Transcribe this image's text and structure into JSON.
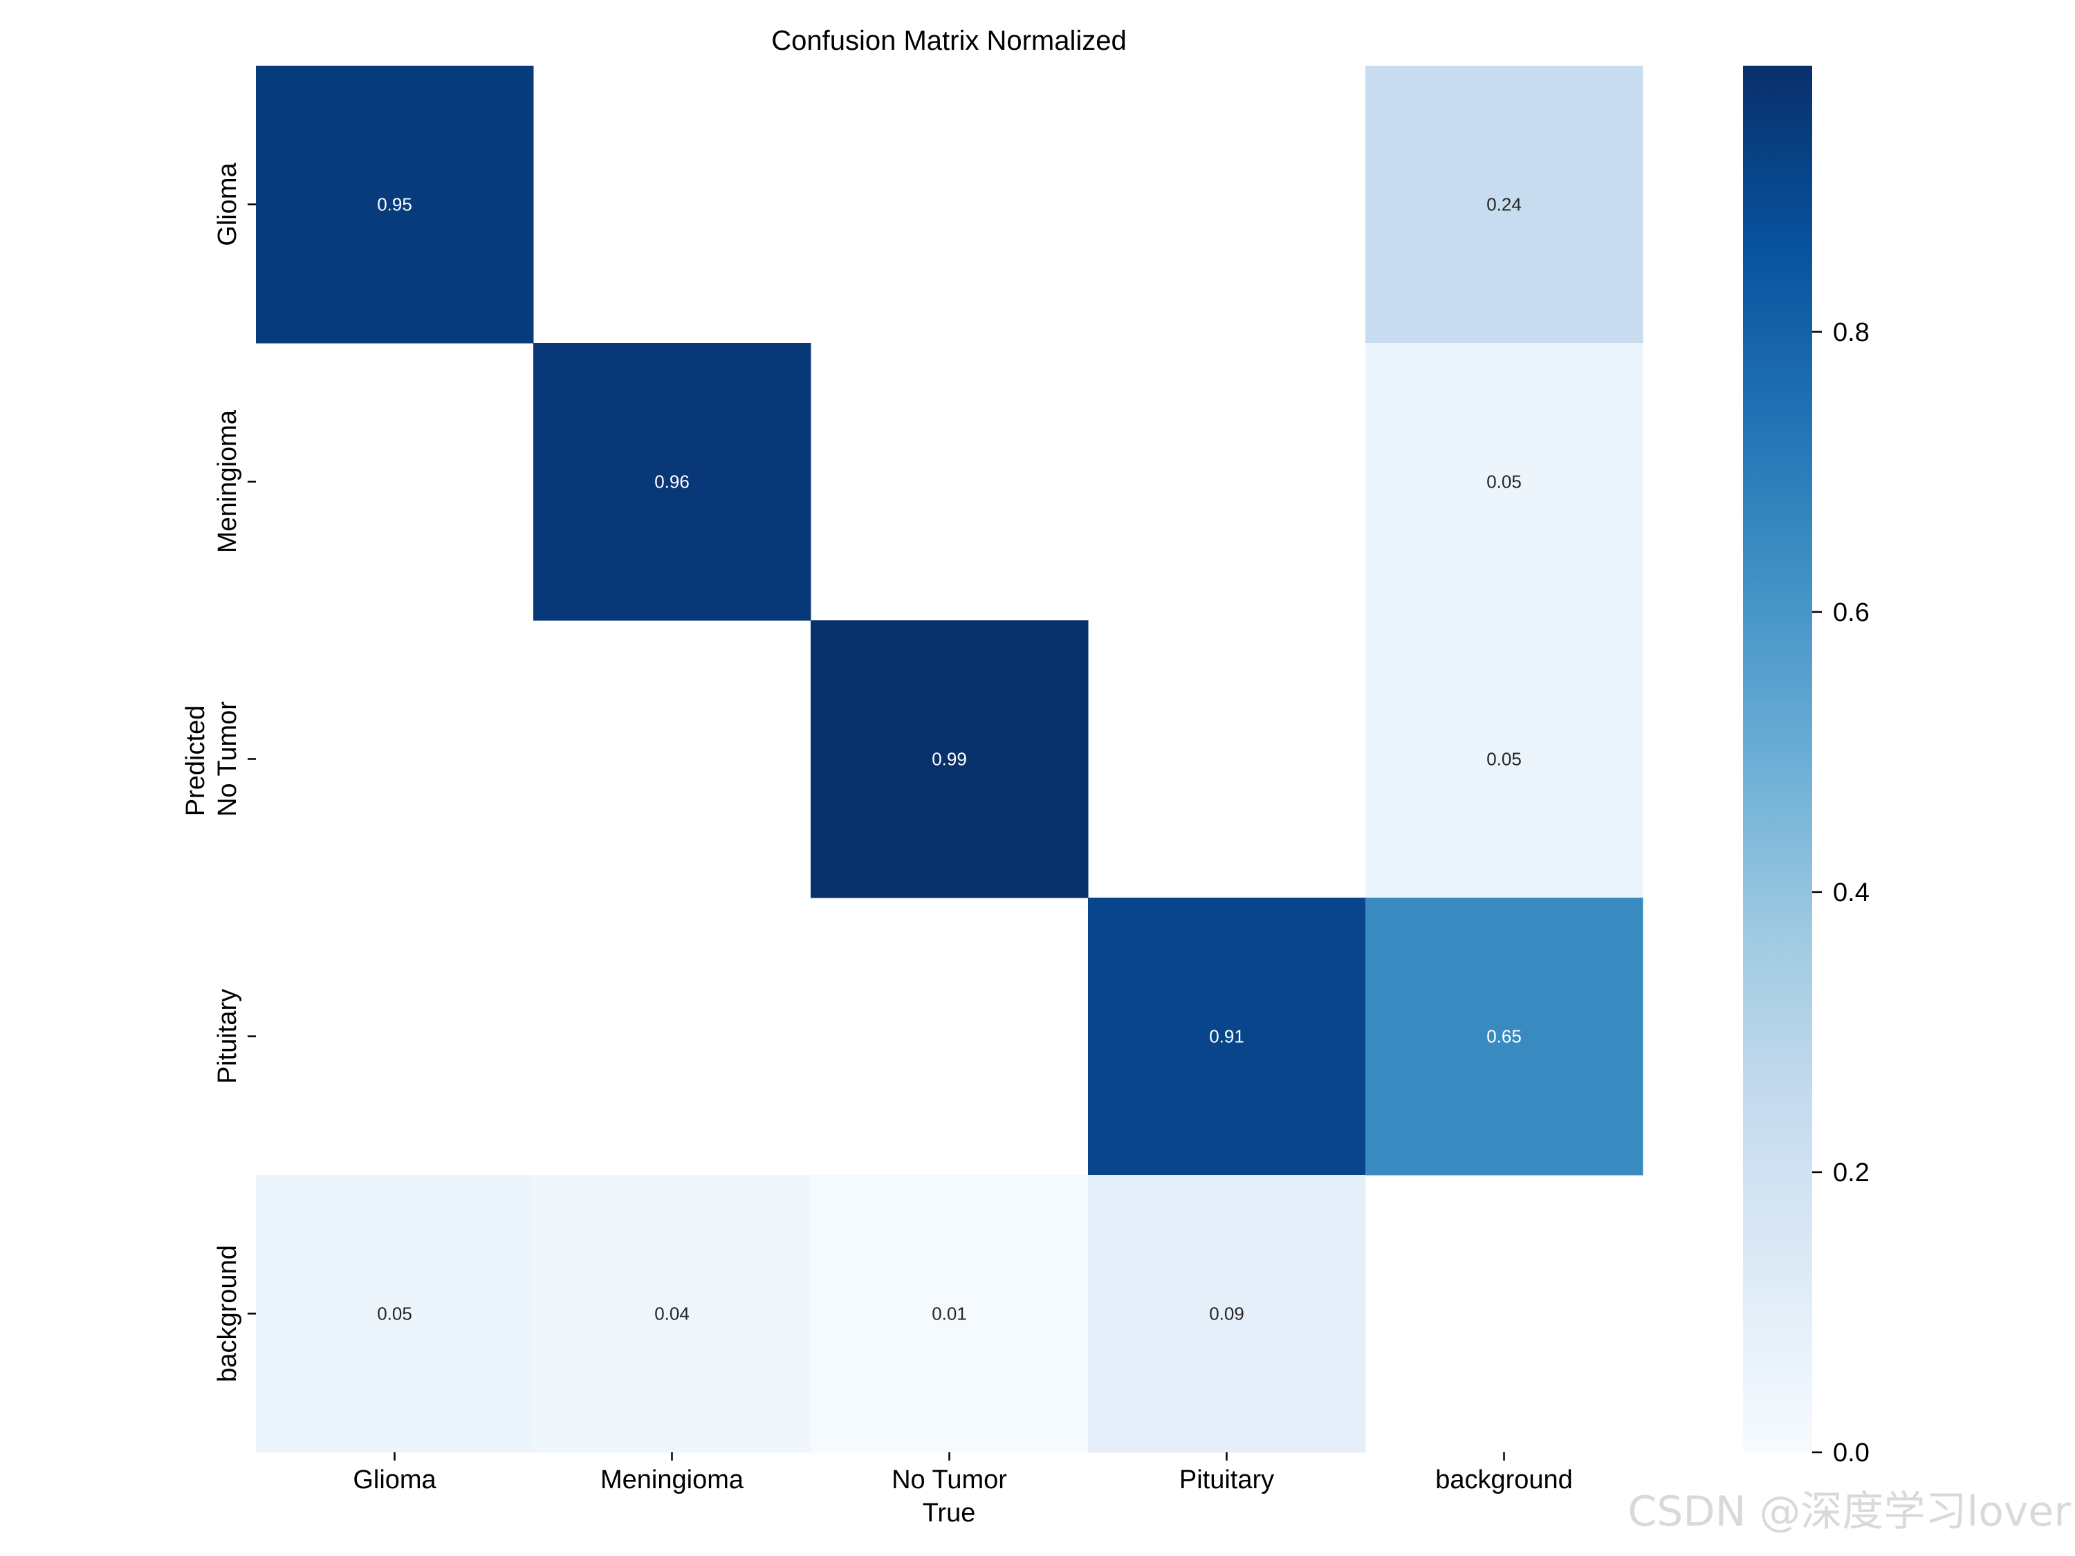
{
  "chart_data": {
    "type": "heatmap",
    "title": "Confusion Matrix Normalized",
    "xlabel": "True",
    "ylabel": "Predicted",
    "x_categories": [
      "Glioma",
      "Meningioma",
      "No Tumor",
      "Pituitary",
      "background"
    ],
    "y_categories": [
      "Glioma",
      "Meningioma",
      "No Tumor",
      "Pituitary",
      "background"
    ],
    "values": [
      [
        0.95,
        null,
        null,
        null,
        0.24
      ],
      [
        null,
        0.96,
        null,
        null,
        0.05
      ],
      [
        null,
        null,
        0.99,
        null,
        0.05
      ],
      [
        null,
        null,
        null,
        0.91,
        0.65
      ],
      [
        0.05,
        0.04,
        0.01,
        0.09,
        null
      ]
    ],
    "value_labels": [
      [
        "0.95",
        "",
        "",
        "",
        "0.24"
      ],
      [
        "",
        "0.96",
        "",
        "",
        "0.05"
      ],
      [
        "",
        "",
        "0.99",
        "",
        "0.05"
      ],
      [
        "",
        "",
        "",
        "0.91",
        "0.65"
      ],
      [
        "0.05",
        "0.04",
        "0.01",
        "0.09",
        ""
      ]
    ],
    "colormap": "Blues",
    "colorbar": {
      "vmin": 0.0,
      "vmax": 0.99,
      "ticks": [
        0.0,
        0.2,
        0.4,
        0.6,
        0.8
      ],
      "tick_labels": [
        "0.0",
        "0.2",
        "0.4",
        "0.6",
        "0.8"
      ]
    }
  },
  "watermark": "CSDN @深度学习lover"
}
